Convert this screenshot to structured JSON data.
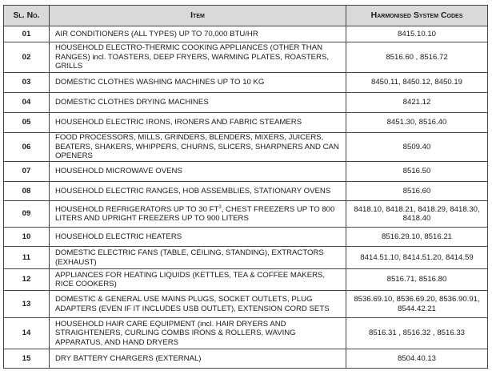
{
  "table": {
    "headers": {
      "sl": "Sl. No.",
      "item": "Item",
      "codes": "Harmonised System Codes"
    },
    "rows": [
      {
        "sl": "01",
        "item": "AIR CONDITIONERS (ALL TYPES) UP TO 70,000 BTU/HR",
        "codes": "8415.10.10"
      },
      {
        "sl": "02",
        "item": "HOUSEHOLD ELECTRO-THERMIC COOKING APPLIANCES (OTHER THAN RANGES) incl. TOASTERS, DEEP FRYERS, WARMING PLATES, ROASTERS, GRILLS",
        "codes": "8516.60 , 8516.72"
      },
      {
        "sl": "03",
        "item": "DOMESTIC CLOTHES WASHING MACHINES UP TO 10 KG",
        "codes": "8450.11, 8450.12, 8450.19"
      },
      {
        "sl": "04",
        "item": "DOMESTIC CLOTHES DRYING MACHINES",
        "codes": "8421.12"
      },
      {
        "sl": "05",
        "item": "HOUSEHOLD ELECTRIC IRONS, IRONERS AND FABRIC STEAMERS",
        "codes": "8451.30, 8516.40"
      },
      {
        "sl": "06",
        "item": "FOOD PROCESSORS, MILLS, GRINDERS, BLENDERS, MIXERS,  JUICERS, BEATERS, SHAKERS, WHIPPERS, CHURNS, SLICERS, SHARPNERS AND CAN OPENERS",
        "codes": "8509.40"
      },
      {
        "sl": "07",
        "item": "HOUSEHOLD MICROWAVE OVENS",
        "codes": "8516.50"
      },
      {
        "sl": "08",
        "item": "HOUSEHOLD ELECTRIC RANGES, HOB ASSEMBLIES, STATIONARY OVENS",
        "codes": "8516.60"
      },
      {
        "sl": "09",
        "item": "HOUSEHOLD REFRIGERATORS UP TO 30 FT",
        "item_sup": "3",
        "item_post": ", CHEST FREEZERS UP TO 800 LITERS AND UPRIGHT FREEZERS UP TO 900 LITERS",
        "codes": "8418.10, 8418.21, 8418.29, 8418.30, 8418.40"
      },
      {
        "sl": "10",
        "item": "HOUSEHOLD ELECTRIC HEATERS",
        "codes": "8516.29.10, 8516.21"
      },
      {
        "sl": "11",
        "item": "DOMESTIC ELECTRIC FANS (TABLE, CEILING, STANDING), EXTRACTORS (EXHAUST)",
        "codes": "8414.51.10, 8414.51.20, 8414.59"
      },
      {
        "sl": "12",
        "item": "APPLIANCES FOR HEATING LIQUIDS (KETTLES, TEA & COFFEE MAKERS, RICE COOKERS)",
        "codes": "8516.71, 8516.80"
      },
      {
        "sl": "13",
        "item": "DOMESTIC & GENERAL USE MAINS PLUGS, SOCKET OUTLETS, PLUG ADAPTERS (EVEN IF IT INCLUDES USB OUTLET), EXTENSION CORD SETS",
        "codes": "8536.69.10, 8536.69.20, 8536.90.91, 8544.42.21"
      },
      {
        "sl": "14",
        "item": "HOUSEHOLD HAIR CARE EQUIPMENT (incl. HAIR DRYERS AND STRAIGHTENERS, CURLING COMBS IRONS & ROLLERS, WAVING APPARATUS, AND HAND DRYERS",
        "codes": "8516.31 , 8516.32 , 8516.33"
      },
      {
        "sl": "15",
        "item": "DRY BATTERY CHARGERS (EXTERNAL)",
        "codes": "8504.40.13"
      }
    ]
  }
}
